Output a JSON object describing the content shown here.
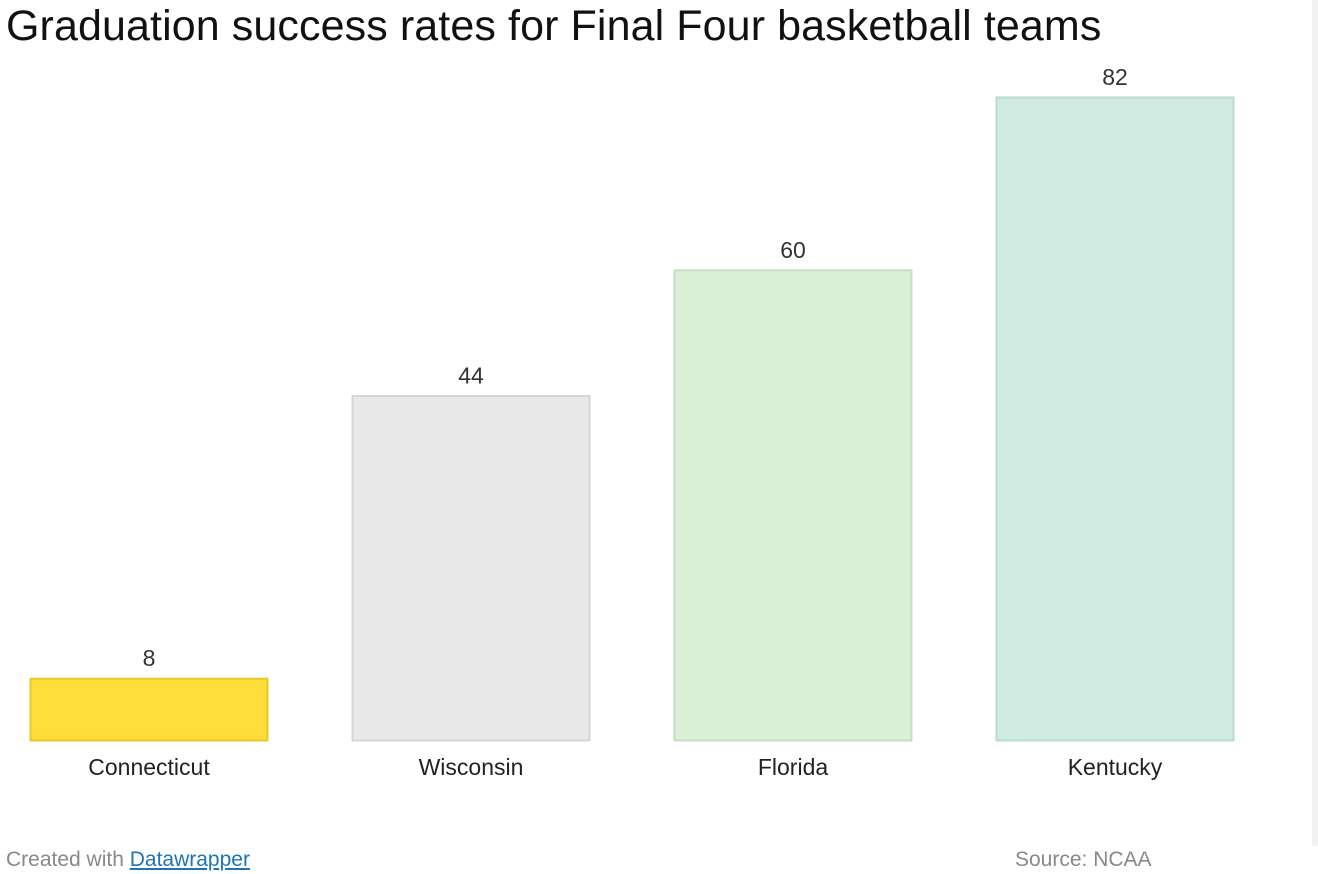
{
  "chart_data": {
    "type": "bar",
    "title": "Graduation success rates for Final Four basketball teams",
    "categories": [
      "Connecticut",
      "Wisconsin",
      "Florida",
      "Kentucky"
    ],
    "values": [
      8,
      44,
      60,
      82
    ],
    "value_labels": [
      "8",
      "44",
      "60",
      "82"
    ],
    "ylim": [
      0,
      82
    ],
    "grid": false,
    "legend": "none",
    "bar_colors": [
      {
        "fill": "#fddd3a",
        "stroke": "#e8c92a"
      },
      {
        "fill": "#e8e8e8",
        "stroke": "#d6d6d6"
      },
      {
        "fill": "#dcefd7",
        "stroke": "#c8dfc3"
      },
      {
        "fill": "#d0ebe2",
        "stroke": "#b8dbcf"
      }
    ]
  },
  "footer": {
    "created_with": "Created with",
    "link_text": "Datawrapper",
    "source": "Source: NCAA"
  },
  "colors": {
    "link": "#1f74b8",
    "footer_text": "#888888",
    "title_text": "#111111"
  }
}
